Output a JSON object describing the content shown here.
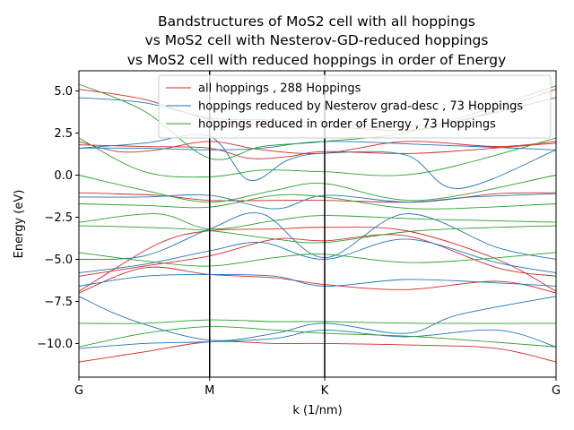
{
  "chart_data": {
    "type": "line",
    "title_lines": [
      "Bandstructures of MoS2 cell with all hoppings",
      "vs MoS2 cell with Nesterov-GD-reduced hoppings",
      "vs MoS2 cell with reduced hoppings in order of Energy"
    ],
    "xlabel": "k (1/nm)",
    "ylabel": "Energy (eV)",
    "ylim": [
      -12.0,
      6.2
    ],
    "xlim": [
      0,
      3.65
    ],
    "xticks": [
      {
        "value": 0,
        "label": "G"
      },
      {
        "value": 1.0,
        "label": "M"
      },
      {
        "value": 1.88,
        "label": "K"
      },
      {
        "value": 3.65,
        "label": "G"
      }
    ],
    "yticks": [
      {
        "value": 5.0,
        "label": "5.0"
      },
      {
        "value": 2.5,
        "label": "2.5"
      },
      {
        "value": 0.0,
        "label": "0.0"
      },
      {
        "value": -2.5,
        "label": "−2.5"
      },
      {
        "value": -5.0,
        "label": "−5.0"
      },
      {
        "value": -7.5,
        "label": "−7.5"
      },
      {
        "value": -10.0,
        "label": "−10.0"
      }
    ],
    "vlines": [
      1.0,
      1.88
    ],
    "legend_position": "top-center",
    "series": [
      {
        "name": "all hoppings , 288 Hoppings",
        "color": "#d62728",
        "bands": [
          [
            [
              0,
              5.1
            ],
            [
              0.5,
              4.5
            ],
            [
              1.0,
              3.3
            ],
            [
              1.4,
              3.0
            ],
            [
              1.88,
              2.9
            ],
            [
              2.7,
              2.8
            ],
            [
              3.65,
              5.1
            ]
          ],
          [
            [
              0,
              2.0
            ],
            [
              0.3,
              1.4
            ],
            [
              0.6,
              1.5
            ],
            [
              1.0,
              2.0
            ],
            [
              1.4,
              1.5
            ],
            [
              1.88,
              1.3
            ],
            [
              2.5,
              2.0
            ],
            [
              3.2,
              1.7
            ],
            [
              3.65,
              2.0
            ]
          ],
          [
            [
              0,
              1.8
            ],
            [
              0.5,
              1.7
            ],
            [
              1.0,
              1.6
            ],
            [
              1.3,
              1.0
            ],
            [
              1.6,
              1.1
            ],
            [
              1.88,
              1.4
            ],
            [
              2.6,
              1.3
            ],
            [
              3.65,
              1.9
            ]
          ],
          [
            [
              0,
              -1.05
            ],
            [
              0.6,
              -1.2
            ],
            [
              1.0,
              -1.5
            ],
            [
              1.5,
              -1.5
            ],
            [
              1.88,
              -1.5
            ],
            [
              2.6,
              -1.6
            ],
            [
              3.2,
              -1.1
            ],
            [
              3.65,
              -1.05
            ]
          ],
          [
            [
              0,
              -6.9
            ],
            [
              0.6,
              -4.1
            ],
            [
              1.0,
              -3.3
            ],
            [
              1.5,
              -3.2
            ],
            [
              1.88,
              -3.1
            ],
            [
              2.5,
              -3.3
            ],
            [
              3.2,
              -5.0
            ],
            [
              3.65,
              -6.9
            ]
          ],
          [
            [
              0,
              -6.0
            ],
            [
              0.5,
              -5.4
            ],
            [
              1.0,
              -4.8
            ],
            [
              1.5,
              -3.8
            ],
            [
              1.88,
              -3.9
            ],
            [
              2.5,
              -3.6
            ],
            [
              3.2,
              -5.5
            ],
            [
              3.65,
              -6.0
            ]
          ],
          [
            [
              0,
              -7.0
            ],
            [
              0.5,
              -5.5
            ],
            [
              1.0,
              -5.9
            ],
            [
              1.5,
              -6.1
            ],
            [
              1.88,
              -6.5
            ],
            [
              2.5,
              -6.8
            ],
            [
              3.2,
              -6.3
            ],
            [
              3.65,
              -7.0
            ]
          ],
          [
            [
              0,
              -11.1
            ],
            [
              0.5,
              -10.5
            ],
            [
              1.0,
              -9.9
            ],
            [
              1.5,
              -10.0
            ],
            [
              1.88,
              -10.0
            ],
            [
              2.6,
              -10.1
            ],
            [
              3.2,
              -10.3
            ],
            [
              3.65,
              -11.1
            ]
          ]
        ]
      },
      {
        "name": "hoppings reduced by Nesterov grad-desc , 73 Hoppings",
        "color": "#1f77b4",
        "bands": [
          [
            [
              0,
              4.6
            ],
            [
              0.5,
              4.3
            ],
            [
              1.0,
              3.4
            ],
            [
              1.4,
              3.3
            ],
            [
              1.88,
              3.1
            ],
            [
              2.7,
              3.0
            ],
            [
              3.65,
              4.6
            ]
          ],
          [
            [
              0,
              1.6
            ],
            [
              0.5,
              1.9
            ],
            [
              1.0,
              2.3
            ],
            [
              1.3,
              -0.3
            ],
            [
              1.6,
              0.9
            ],
            [
              1.88,
              1.3
            ],
            [
              2.5,
              1.2
            ],
            [
              2.9,
              -0.8
            ],
            [
              3.65,
              1.5
            ]
          ],
          [
            [
              0,
              1.6
            ],
            [
              0.5,
              1.6
            ],
            [
              1.0,
              1.5
            ],
            [
              1.4,
              1.6
            ],
            [
              1.88,
              2.0
            ],
            [
              2.7,
              1.8
            ],
            [
              3.65,
              1.5
            ]
          ],
          [
            [
              0,
              -1.3
            ],
            [
              0.5,
              -1.3
            ],
            [
              1.0,
              -1.2
            ],
            [
              1.5,
              -2.0
            ],
            [
              1.88,
              -1.2
            ],
            [
              2.5,
              -1.6
            ],
            [
              3.0,
              -1.3
            ],
            [
              3.65,
              -1.1
            ]
          ],
          [
            [
              0,
              -5.0
            ],
            [
              0.5,
              -4.8
            ],
            [
              1.0,
              -3.2
            ],
            [
              1.4,
              -2.3
            ],
            [
              1.88,
              -4.9
            ],
            [
              2.5,
              -2.3
            ],
            [
              3.2,
              -4.3
            ],
            [
              3.65,
              -5.0
            ]
          ],
          [
            [
              0,
              -5.8
            ],
            [
              0.5,
              -5.3
            ],
            [
              1.0,
              -4.5
            ],
            [
              1.4,
              -4.0
            ],
            [
              1.88,
              -5.0
            ],
            [
              2.5,
              -3.8
            ],
            [
              3.2,
              -5.2
            ],
            [
              3.65,
              -5.8
            ]
          ],
          [
            [
              0,
              -6.6
            ],
            [
              0.5,
              -6.0
            ],
            [
              1.0,
              -5.9
            ],
            [
              1.5,
              -6.0
            ],
            [
              1.88,
              -6.6
            ],
            [
              2.5,
              -6.2
            ],
            [
              3.2,
              -6.4
            ],
            [
              3.65,
              -6.6
            ]
          ],
          [
            [
              0,
              -7.2
            ],
            [
              0.4,
              -8.6
            ],
            [
              1.0,
              -9.8
            ],
            [
              1.5,
              -9.4
            ],
            [
              1.88,
              -8.8
            ],
            [
              2.5,
              -9.4
            ],
            [
              2.9,
              -8.3
            ],
            [
              3.65,
              -7.2
            ]
          ],
          [
            [
              0,
              -10.3
            ],
            [
              0.5,
              -10.0
            ],
            [
              1.0,
              -9.9
            ],
            [
              1.5,
              -9.7
            ],
            [
              1.88,
              -9.2
            ],
            [
              2.5,
              -9.6
            ],
            [
              3.2,
              -9.2
            ],
            [
              3.65,
              -10.2
            ]
          ]
        ]
      },
      {
        "name": "hoppings reduced in order of Energy , 73 Hoppings",
        "color": "#2ca02c",
        "bands": [
          [
            [
              0,
              5.4
            ],
            [
              0.5,
              3.8
            ],
            [
              1.0,
              1.0
            ],
            [
              1.4,
              1.7
            ],
            [
              1.88,
              2.0
            ],
            [
              2.6,
              2.7
            ],
            [
              3.65,
              5.3
            ]
          ],
          [
            [
              0,
              2.2
            ],
            [
              0.5,
              0.2
            ],
            [
              1.0,
              -0.1
            ],
            [
              1.4,
              0.3
            ],
            [
              1.88,
              0.2
            ],
            [
              2.6,
              0.1
            ],
            [
              3.65,
              2.2
            ]
          ],
          [
            [
              0,
              0.0
            ],
            [
              0.5,
              -0.9
            ],
            [
              1.0,
              -1.6
            ],
            [
              1.5,
              -0.9
            ],
            [
              1.88,
              -0.5
            ],
            [
              2.6,
              -1.5
            ],
            [
              3.65,
              0.0
            ]
          ],
          [
            [
              0,
              -1.7
            ],
            [
              0.5,
              -1.8
            ],
            [
              1.0,
              -1.9
            ],
            [
              1.5,
              -1.2
            ],
            [
              1.88,
              -1.3
            ],
            [
              2.6,
              -2.0
            ],
            [
              3.65,
              -1.7
            ]
          ],
          [
            [
              0,
              -2.8
            ],
            [
              0.6,
              -2.3
            ],
            [
              1.0,
              -3.2
            ],
            [
              1.5,
              -2.7
            ],
            [
              1.88,
              -2.4
            ],
            [
              2.6,
              -2.6
            ],
            [
              3.65,
              -2.8
            ]
          ],
          [
            [
              0,
              -3.0
            ],
            [
              0.5,
              -3.1
            ],
            [
              1.0,
              -3.3
            ],
            [
              1.5,
              -3.8
            ],
            [
              1.88,
              -4.0
            ],
            [
              2.6,
              -3.3
            ],
            [
              3.65,
              -3.0
            ]
          ],
          [
            [
              0,
              -4.6
            ],
            [
              0.5,
              -5.1
            ],
            [
              1.0,
              -5.4
            ],
            [
              1.5,
              -4.9
            ],
            [
              1.88,
              -4.7
            ],
            [
              2.6,
              -5.2
            ],
            [
              3.65,
              -4.6
            ]
          ],
          [
            [
              0,
              -8.8
            ],
            [
              0.5,
              -8.8
            ],
            [
              1.0,
              -8.6
            ],
            [
              1.5,
              -8.7
            ],
            [
              1.88,
              -8.7
            ],
            [
              2.6,
              -8.8
            ],
            [
              3.65,
              -8.8
            ]
          ],
          [
            [
              0,
              -10.2
            ],
            [
              0.5,
              -9.4
            ],
            [
              1.0,
              -9.0
            ],
            [
              1.5,
              -9.2
            ],
            [
              1.88,
              -9.4
            ],
            [
              2.6,
              -9.6
            ],
            [
              3.65,
              -10.2
            ]
          ]
        ]
      }
    ]
  }
}
